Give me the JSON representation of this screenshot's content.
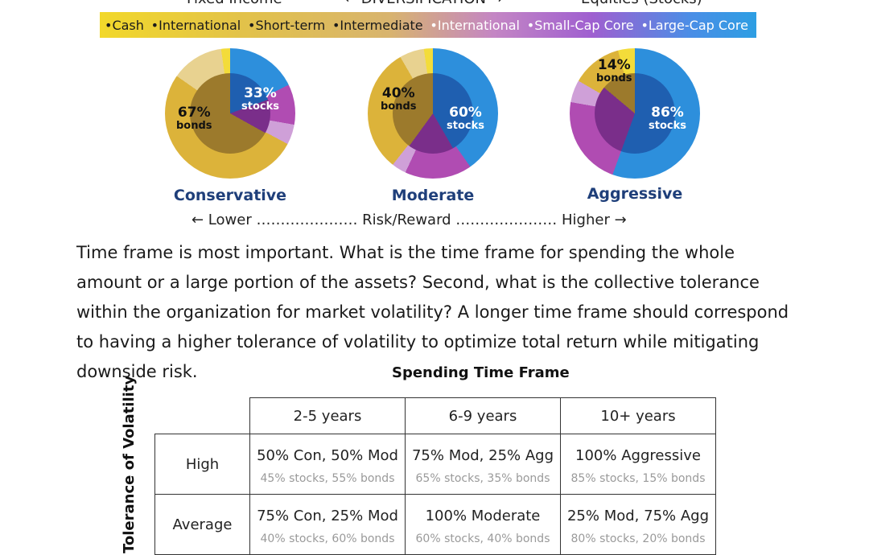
{
  "header": {
    "left": "Fixed Income",
    "center": "← DIVERSIFICATION →",
    "right": "Equities (Stocks)"
  },
  "legend": {
    "items": [
      "•Cash",
      "•International",
      "•Short-term",
      "•Intermediate",
      "•International",
      "•Small-Cap Core",
      "•Large-Cap Core"
    ]
  },
  "pies": [
    {
      "title": "Conservative",
      "stocks_label": "33%",
      "stocks_word": "stocks",
      "bonds_label": "67%",
      "bonds_word": "bonds",
      "stocks_pct": 33
    },
    {
      "title": "Moderate",
      "stocks_label": "60%",
      "stocks_word": "stocks",
      "bonds_label": "40%",
      "bonds_word": "bonds",
      "stocks_pct": 60
    },
    {
      "title": "Aggressive",
      "stocks_label": "86%",
      "stocks_word": "stocks",
      "bonds_label": "14%",
      "bonds_word": "bonds",
      "stocks_pct": 86
    }
  ],
  "risk_line": "← Lower ………………… Risk/Reward ………………… Higher →",
  "paragraph": "Time frame is most important. What is the time frame for spending the whole amount or a large portion of the assets? Second, what is the collective tolerance within the organization for market volatility? A longer time frame should correspond to having a higher tolerance of volatility to optimize total return while mitigating downside risk.",
  "table": {
    "title": "Spending Time Frame",
    "side_label": "Tolerance of Volatility",
    "columns": [
      "2-5 years",
      "6-9 years",
      "10+ years"
    ],
    "rows": [
      {
        "label": "High",
        "cells": [
          {
            "main": "50% Con, 50% Mod",
            "sub": "45% stocks, 55% bonds"
          },
          {
            "main": "75% Mod, 25% Agg",
            "sub": "65% stocks, 35% bonds"
          },
          {
            "main": "100% Aggressive",
            "sub": "85% stocks, 15% bonds"
          }
        ]
      },
      {
        "label": "Average",
        "cells": [
          {
            "main": "75% Con, 25% Mod",
            "sub": "40% stocks, 60% bonds"
          },
          {
            "main": "100% Moderate",
            "sub": "60% stocks, 40% bonds"
          },
          {
            "main": "25% Mod, 75% Agg",
            "sub": "80% stocks, 20% bonds"
          }
        ]
      }
    ]
  },
  "colors": {
    "title_blue": "#1f3f7a",
    "stocks_blue": "#2d8fdc",
    "stocks_purple": "#b04cb2",
    "bonds_gold": "#dcb33a",
    "bonds_brown": "#9c7a2c"
  }
}
